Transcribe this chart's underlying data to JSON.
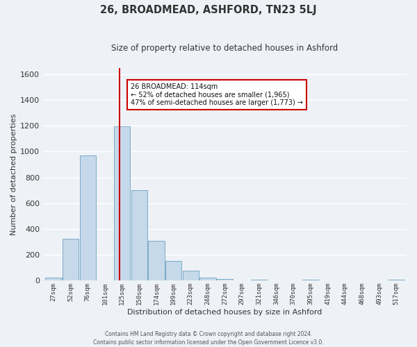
{
  "title": "26, BROADMEAD, ASHFORD, TN23 5LJ",
  "subtitle": "Size of property relative to detached houses in Ashford",
  "xlabel": "Distribution of detached houses by size in Ashford",
  "ylabel": "Number of detached properties",
  "bar_color": "#c5d9ea",
  "bar_edge_color": "#7baac8",
  "background_color": "#eef2f7",
  "grid_color": "#ffffff",
  "categories": [
    "27sqm",
    "52sqm",
    "76sqm",
    "101sqm",
    "125sqm",
    "150sqm",
    "174sqm",
    "199sqm",
    "223sqm",
    "248sqm",
    "272sqm",
    "297sqm",
    "321sqm",
    "346sqm",
    "370sqm",
    "395sqm",
    "419sqm",
    "444sqm",
    "468sqm",
    "493sqm",
    "517sqm"
  ],
  "values": [
    25,
    325,
    970,
    0,
    1195,
    700,
    310,
    155,
    75,
    25,
    15,
    0,
    10,
    0,
    0,
    10,
    0,
    0,
    0,
    0,
    10
  ],
  "vline_pos": 3.85,
  "vline_color": "#cc0000",
  "ylim": [
    0,
    1650
  ],
  "yticks": [
    0,
    200,
    400,
    600,
    800,
    1000,
    1200,
    1400,
    1600
  ],
  "annotation_title": "26 BROADMEAD: 114sqm",
  "annotation_line1": "← 52% of detached houses are smaller (1,965)",
  "annotation_line2": "47% of semi-detached houses are larger (1,773) →",
  "annotation_box_color": "#cc0000",
  "footer_line1": "Contains HM Land Registry data © Crown copyright and database right 2024.",
  "footer_line2": "Contains public sector information licensed under the Open Government Licence v3.0."
}
